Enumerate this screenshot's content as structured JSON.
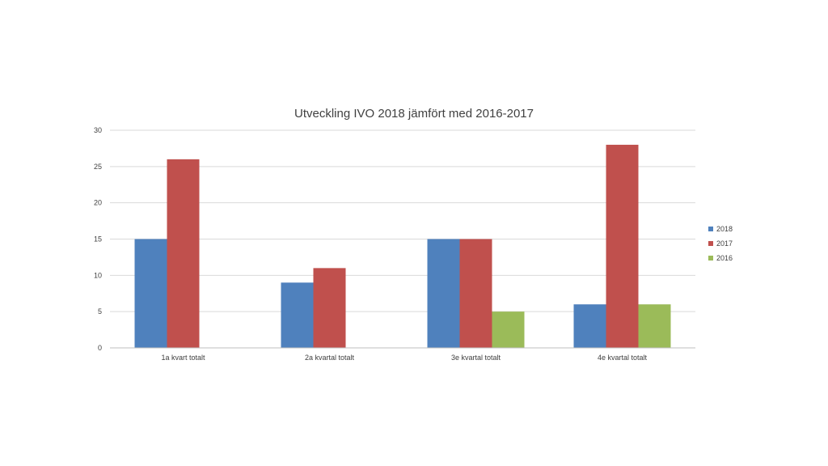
{
  "chart_data": {
    "type": "bar",
    "title": "Utveckling IVO 2018 jämfört med 2016-2017",
    "xlabel": "",
    "ylabel": "",
    "categories": [
      "1a kvart totalt",
      "2a kvartal totalt",
      "3e kvartal totalt",
      "4e kvartal totalt"
    ],
    "series": [
      {
        "name": "2018",
        "color": "#4f81bd",
        "values": [
          15,
          9,
          15,
          6
        ]
      },
      {
        "name": "2017",
        "color": "#c0504d",
        "values": [
          26,
          11,
          15,
          28
        ]
      },
      {
        "name": "2016",
        "color": "#9bbb59",
        "values": [
          0,
          0,
          5,
          6
        ]
      }
    ],
    "ylim": [
      0,
      30
    ],
    "yticks": [
      "0",
      "5",
      "10",
      "15",
      "20",
      "25",
      "30"
    ],
    "grid": true,
    "legend_position": "right"
  }
}
